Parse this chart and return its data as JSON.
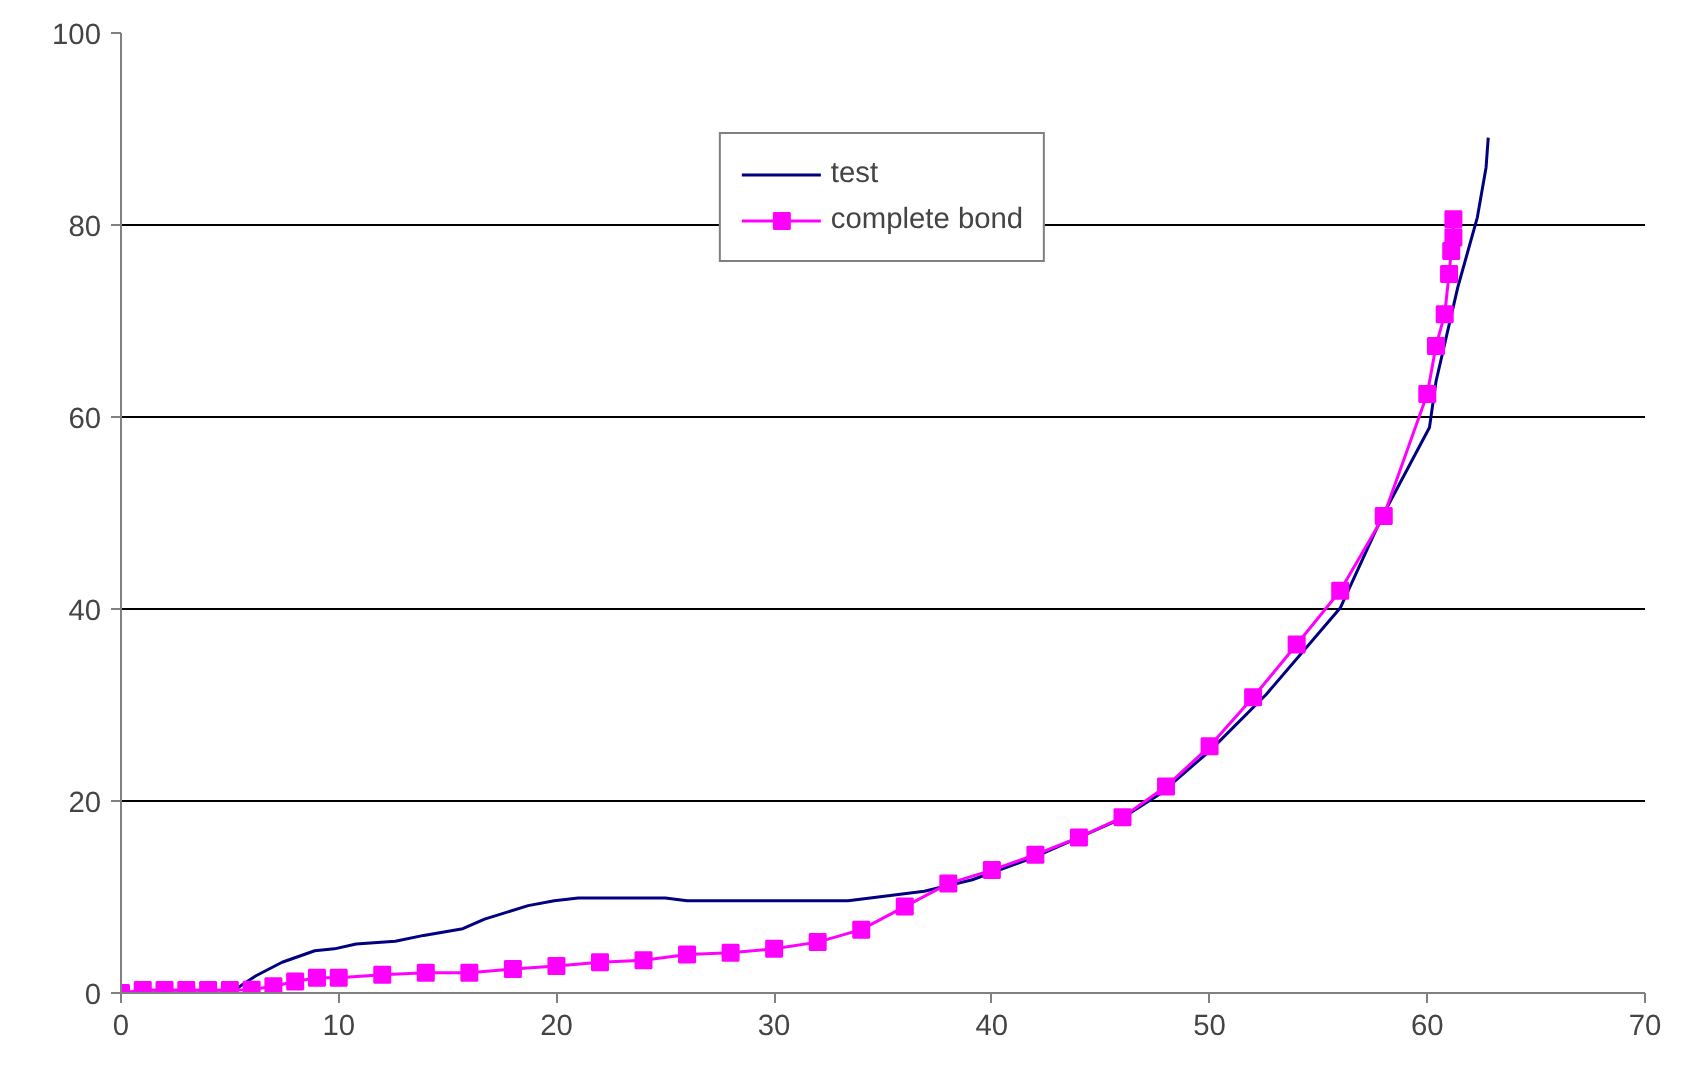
{
  "chart_data": {
    "type": "line",
    "xlim": [
      0,
      70
    ],
    "ylim": [
      0,
      100
    ],
    "xticks": [
      0,
      10,
      20,
      30,
      40,
      50,
      60,
      70
    ],
    "yticks": [
      0,
      20,
      40,
      60,
      80,
      100
    ],
    "grid": "y",
    "legend": "top",
    "series": [
      {
        "name": "test",
        "color": "#000080",
        "marker": "none",
        "x": [
          0,
          5,
          6.2,
          7.4,
          8.9,
          9.8,
          10.8,
          12.6,
          13.9,
          15.7,
          16.7,
          18.7,
          19.9,
          21,
          25,
          26,
          33.4,
          36.9,
          39.1,
          41.9,
          45.9,
          47.7,
          50,
          52.6,
          56,
          57.9,
          60.1,
          60.4,
          61.4,
          62.3,
          62.7,
          62.8
        ],
        "values": [
          0,
          0,
          1.8,
          3.2,
          4.4,
          4.6,
          5.1,
          5.4,
          6.0,
          6.7,
          7.7,
          9.1,
          9.6,
          9.9,
          9.9,
          9.6,
          9.6,
          10.6,
          11.8,
          14.1,
          18.1,
          20.7,
          25.2,
          31.1,
          40.1,
          49.5,
          58.9,
          63.7,
          73.5,
          80.8,
          86,
          89.1
        ]
      },
      {
        "name": "complete bond",
        "color": "#ff00ff",
        "marker": "square",
        "x": [
          0,
          1,
          2,
          3,
          4,
          5,
          6,
          7,
          8,
          9,
          10,
          12,
          14,
          16,
          18,
          20,
          22,
          24,
          26,
          28,
          30,
          32,
          34,
          36,
          38,
          40,
          42,
          44,
          46,
          48,
          50,
          52,
          54,
          56,
          58,
          60,
          60.4,
          60.8,
          61,
          61.1,
          61.2,
          61.2
        ],
        "values": [
          0,
          0.3,
          0.3,
          0.3,
          0.3,
          0.3,
          0.35,
          0.7,
          1.2,
          1.6,
          1.6,
          1.9,
          2.1,
          2.1,
          2.5,
          2.8,
          3.2,
          3.4,
          4.0,
          4.2,
          4.6,
          5.3,
          6.6,
          9.0,
          11.4,
          12.8,
          14.4,
          16.2,
          18.3,
          21.5,
          25.7,
          30.8,
          36.3,
          41.9,
          49.7,
          62.4,
          67.4,
          70.7,
          74.9,
          77.3,
          78.7,
          80.6
        ]
      }
    ]
  }
}
